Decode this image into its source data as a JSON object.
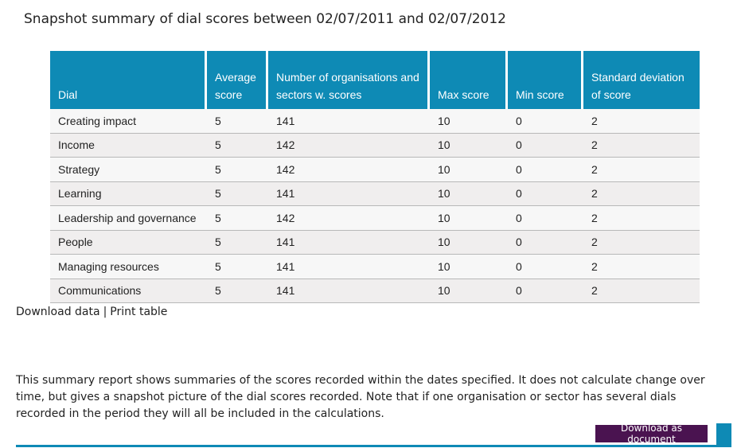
{
  "title": "Snapshot summary of dial scores between 02/07/2011 and 02/07/2012",
  "table": {
    "headers": [
      "Dial",
      "Average score",
      "Number of organisations and sectors w. scores",
      "Max score",
      "Min score",
      "Standard deviation of score"
    ],
    "rows": [
      [
        "Creating impact",
        "5",
        "141",
        "10",
        "0",
        "2"
      ],
      [
        "Income",
        "5",
        "142",
        "10",
        "0",
        "2"
      ],
      [
        "Strategy",
        "5",
        "142",
        "10",
        "0",
        "2"
      ],
      [
        "Learning",
        "5",
        "141",
        "10",
        "0",
        "2"
      ],
      [
        "Leadership and governance",
        "5",
        "142",
        "10",
        "0",
        "2"
      ],
      [
        "People",
        "5",
        "141",
        "10",
        "0",
        "2"
      ],
      [
        "Managing resources",
        "5",
        "141",
        "10",
        "0",
        "2"
      ],
      [
        "Communications",
        "5",
        "141",
        "10",
        "0",
        "2"
      ]
    ]
  },
  "links": {
    "download_data": "Download data",
    "separator": "|",
    "print_table": "Print table"
  },
  "note": "This summary report shows summaries of the scores recorded within the dates specified. It does not calculate change over time, but gives a snapshot picture of the dial scores recorded. Note that if one organisation or sector has several dials recorded in the period they will all be included in the calculations.",
  "download_button": "Download as document",
  "colors": {
    "header": "#0e8ab5",
    "button": "#4a1350",
    "row_odd": "#f7f7f7",
    "row_even": "#f0eeee"
  }
}
